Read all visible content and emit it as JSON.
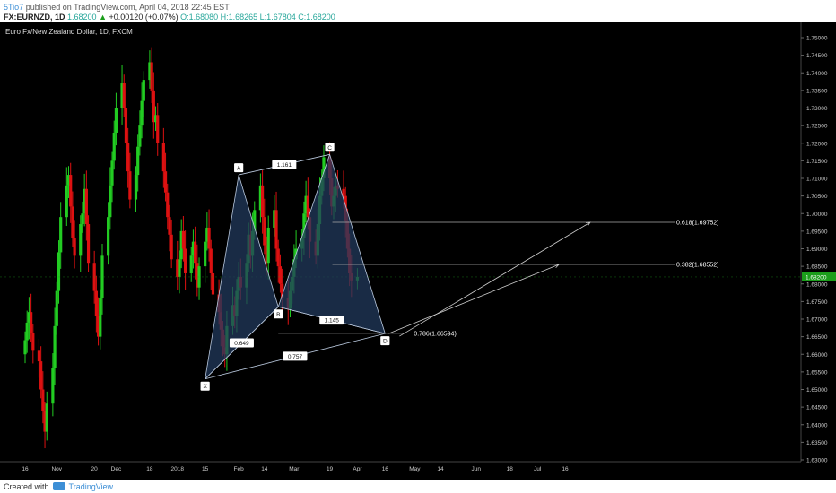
{
  "header": {
    "author": "5Tio7",
    "published": "published on TradingView.com, April 04, 2018 22:45 EST",
    "symbol": "FX:EURNZD, 1D",
    "close_price": "1.68200",
    "change": "+0.00120 (+0.07%)",
    "ohlc": "O:1.68080 H:1.68265 L:1.67804 C:1.68200"
  },
  "footer": {
    "created_with": "Created with",
    "brand": "TradingView"
  },
  "colors": {
    "background": "#000000",
    "bull": "#22cc22",
    "bear": "#dd1111",
    "pattern_fill": "#223a5c",
    "pattern_line": "#b8c7dc",
    "axis_text": "#cccccc",
    "price_badge": "#1b9e1b"
  },
  "chart_data": {
    "type": "candlestick",
    "title": "Euro Fx/New Zealand Dollar, 1D, FXCM",
    "ylim": [
      1.625,
      1.755
    ],
    "y_ticks": [
      "1.75000",
      "1.74500",
      "1.74000",
      "1.73500",
      "1.73000",
      "1.72500",
      "1.72000",
      "1.71500",
      "1.71000",
      "1.70500",
      "1.70000",
      "1.69500",
      "1.69000",
      "1.68500",
      "1.68000",
      "1.67500",
      "1.67000",
      "1.66500",
      "1.66000",
      "1.65500",
      "1.65000",
      "1.64500",
      "1.64000",
      "1.63500",
      "1.63000"
    ],
    "x_ticks": [
      {
        "label": "16",
        "date": "2017-10-16"
      },
      {
        "label": "Nov",
        "date": "2017-11-01"
      },
      {
        "label": "20",
        "date": "2017-11-20"
      },
      {
        "label": "Dec",
        "date": "2017-12-01"
      },
      {
        "label": "18",
        "date": "2017-12-18"
      },
      {
        "label": "2018",
        "date": "2018-01-01"
      },
      {
        "label": "15",
        "date": "2018-01-15"
      },
      {
        "label": "Feb",
        "date": "2018-02-01"
      },
      {
        "label": "14",
        "date": "2018-02-14"
      },
      {
        "label": "Mar",
        "date": "2018-03-01"
      },
      {
        "label": "19",
        "date": "2018-03-19"
      },
      {
        "label": "Apr",
        "date": "2018-04-02"
      },
      {
        "label": "16",
        "date": "2018-04-16"
      },
      {
        "label": "May",
        "date": "2018-05-01"
      },
      {
        "label": "14",
        "date": "2018-05-14"
      },
      {
        "label": "Jun",
        "date": "2018-06-01"
      },
      {
        "label": "18",
        "date": "2018-06-18"
      },
      {
        "label": "Jul",
        "date": "2018-07-02"
      },
      {
        "label": "16",
        "date": "2018-07-16"
      }
    ],
    "last_price": "1.68200",
    "candles_close": [
      1.664,
      1.669,
      1.672,
      1.666,
      1.661,
      1.658,
      1.65,
      1.644,
      1.638,
      1.646,
      1.656,
      1.668,
      1.678,
      1.689,
      1.699,
      1.708,
      1.711,
      1.702,
      1.693,
      1.688,
      1.697,
      1.7,
      1.707,
      1.697,
      1.686,
      1.678,
      1.671,
      1.665,
      1.676,
      1.688,
      1.699,
      1.708,
      1.715,
      1.723,
      1.73,
      1.737,
      1.73,
      1.72,
      1.712,
      1.704,
      1.711,
      1.719,
      1.725,
      1.732,
      1.738,
      1.743,
      1.735,
      1.726,
      1.728,
      1.72,
      1.712,
      1.706,
      1.699,
      1.694,
      1.687,
      1.682,
      1.687,
      1.695,
      1.69,
      1.683,
      1.688,
      1.692,
      1.686,
      1.679,
      1.685,
      1.692,
      1.696,
      1.69,
      1.683,
      1.677,
      1.672,
      1.667,
      1.662,
      1.66,
      1.668,
      1.674,
      1.671,
      1.678,
      1.682,
      1.679,
      1.686,
      1.694,
      1.688,
      1.695,
      1.701,
      1.708,
      1.699,
      1.691,
      1.686,
      1.696,
      1.701,
      1.69,
      1.685,
      1.68,
      1.676,
      1.673,
      1.678,
      1.682,
      1.687,
      1.69,
      1.693,
      1.7,
      1.705,
      1.699,
      1.692,
      1.688,
      1.697,
      1.705,
      1.71,
      1.716,
      1.71,
      1.702,
      1.705,
      1.708,
      1.707,
      1.705,
      1.698,
      1.69,
      1.683,
      1.681,
      1.682
    ],
    "xabcd": {
      "points": [
        {
          "label": "X",
          "date": "2018-01-15",
          "price": 1.653
        },
        {
          "label": "A",
          "date": "2018-02-01",
          "price": 1.711
        },
        {
          "label": "B",
          "date": "2018-02-21",
          "price": 1.6735
        },
        {
          "label": "C",
          "date": "2018-03-19",
          "price": 1.7168
        },
        {
          "label": "D",
          "date": "2018-04-16",
          "price": 1.6659
        }
      ],
      "ratios": [
        {
          "label": "1.161",
          "between": [
            "A",
            "C"
          ]
        },
        {
          "label": "0.649",
          "between": [
            "X",
            "B"
          ]
        },
        {
          "label": "1.145",
          "between": [
            "B",
            "D"
          ]
        },
        {
          "label": "0.757",
          "between": [
            "X",
            "D"
          ]
        }
      ],
      "fib_levels": [
        {
          "label": "0.618(1.69752)",
          "price": 1.69752
        },
        {
          "label": "0.382(1.68552)",
          "price": 1.68552
        },
        {
          "label": "0.786(1.66594)",
          "price": 1.66594
        }
      ]
    }
  }
}
